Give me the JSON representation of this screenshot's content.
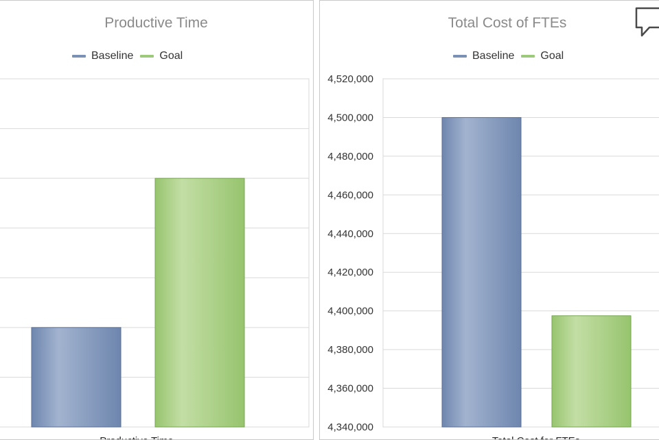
{
  "charts": {
    "left": {
      "title": "Productive Time"
    },
    "right": {
      "title": "Total Cost of FTEs"
    }
  },
  "legend": {
    "baseline": "Baseline",
    "goal": "Goal"
  },
  "colors": {
    "baseline": "#7a90b5",
    "goal": "#9dc97a",
    "gridline": "#d9d9d9",
    "title": "#8a8a8a"
  },
  "icons": {
    "comment": "speech-bubble-icon"
  },
  "chart_data": [
    {
      "type": "bar",
      "title": "Productive Time",
      "categories": [
        "Productive Time"
      ],
      "series": [
        {
          "name": "Baseline",
          "values": [
            1
          ]
        },
        {
          "name": "Goal",
          "values": [
            4
          ]
        }
      ],
      "ylim": [
        -1,
        6
      ],
      "ytick_labels_visible": false,
      "grid": true,
      "legend": "top"
    },
    {
      "type": "bar",
      "title": "Total Cost of FTEs",
      "categories": [
        "Total Cost for FTEs"
      ],
      "series": [
        {
          "name": "Baseline",
          "values": [
            4500000
          ]
        },
        {
          "name": "Goal",
          "values": [
            4397500
          ]
        }
      ],
      "ylim": [
        4340000,
        4520000
      ],
      "yticks": [
        "4,340,000",
        "4,360,000",
        "4,380,000",
        "4,400,000",
        "4,420,000",
        "4,440,000",
        "4,460,000",
        "4,480,000",
        "4,500,000",
        "4,520,000"
      ],
      "grid": true,
      "legend": "top"
    }
  ]
}
